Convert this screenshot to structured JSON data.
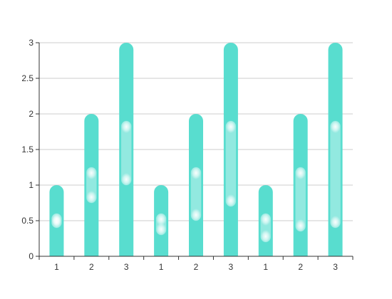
{
  "chart_data": {
    "type": "bar",
    "categories": [
      "1",
      "2",
      "3",
      "1",
      "2",
      "3",
      "1",
      "2",
      "3"
    ],
    "values": [
      1,
      2,
      3,
      1,
      2,
      3,
      1,
      2,
      3
    ],
    "highlights": [
      [
        0.4,
        0.6
      ],
      [
        0.75,
        1.25
      ],
      [
        1.0,
        1.9
      ],
      [
        0.3,
        0.6
      ],
      [
        0.5,
        1.25
      ],
      [
        0.7,
        1.9
      ],
      [
        0.2,
        0.6
      ],
      [
        0.35,
        1.25
      ],
      [
        0.4,
        1.9
      ]
    ],
    "title": "",
    "xlabel": "",
    "ylabel": "",
    "ylim": [
      0,
      3
    ],
    "yticks": [
      "0",
      "0.5",
      "1",
      "1.5",
      "2",
      "2.5",
      "3"
    ],
    "grid": true,
    "colors": {
      "bar": "#58ddcf",
      "highlight": "#ffffff",
      "grid": "#cccccc",
      "axis": "#333333",
      "text": "#333333"
    }
  }
}
